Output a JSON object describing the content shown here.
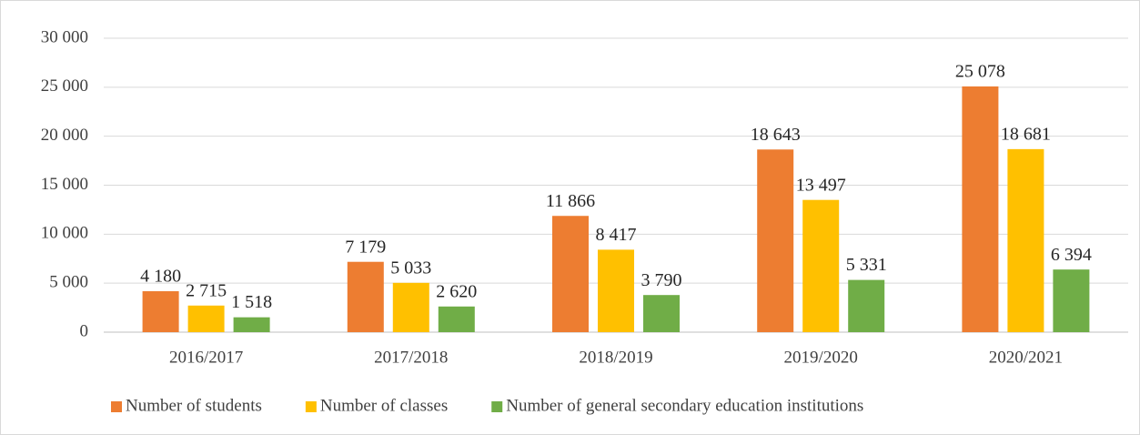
{
  "chart_data": {
    "type": "bar",
    "categories": [
      "2016/2017",
      "2017/2018",
      "2018/2019",
      "2019/2020",
      "2020/2021"
    ],
    "series": [
      {
        "name": "Number of students",
        "color": "#ed7d31",
        "values": [
          4180,
          7179,
          11866,
          18643,
          25078
        ],
        "value_labels": [
          "4 180",
          "7 179",
          "11 866",
          "18 643",
          "25 078"
        ]
      },
      {
        "name": "Number of classes",
        "color": "#ffc000",
        "values": [
          2715,
          5033,
          8417,
          13497,
          18681
        ],
        "value_labels": [
          "2 715",
          "5 033",
          "8 417",
          "13 497",
          "18 681"
        ]
      },
      {
        "name": "Number of general secondary education institutions",
        "color": "#70ad47",
        "values": [
          1518,
          2620,
          3790,
          5331,
          6394
        ],
        "value_labels": [
          "1 518",
          "2 620",
          "3 790",
          "5 331",
          "6 394"
        ]
      }
    ],
    "ylim": [
      0,
      30000
    ],
    "yticks": [
      0,
      {
        "value": 5000,
        "label": "5 000"
      },
      {
        "value": 10000,
        "label": "10 000"
      },
      {
        "value": 15000,
        "label": "15 000"
      },
      {
        "value": 20000,
        "label": "20 000"
      },
      {
        "value": 25000,
        "label": "25 000"
      },
      {
        "value": 30000,
        "label": "30 000"
      }
    ],
    "grid": true,
    "legend": "bottom"
  }
}
